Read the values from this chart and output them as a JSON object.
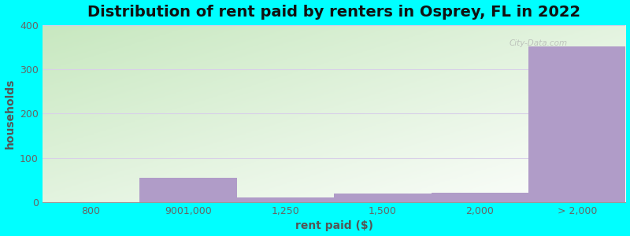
{
  "title": "Distribution of rent paid by renters in Osprey, FL in 2022",
  "xlabel": "rent paid ($)",
  "ylabel": "households",
  "tick_labels": [
    "800",
    "9001,000",
    "1,250",
    "1,500",
    "2,000",
    "> 2,000"
  ],
  "values": [
    0,
    55,
    10,
    20,
    22,
    352
  ],
  "bar_color": "#b09cc8",
  "ylim": [
    0,
    400
  ],
  "yticks": [
    0,
    100,
    200,
    300,
    400
  ],
  "background_outer": "#00ffff",
  "bg_color_topleft": "#c8e8c0",
  "bg_color_bottomright": "#f0f8f0",
  "title_fontsize": 14,
  "axis_label_fontsize": 10,
  "tick_fontsize": 9,
  "grid_color": "#d8d0e8",
  "watermark": "City-Data.com"
}
